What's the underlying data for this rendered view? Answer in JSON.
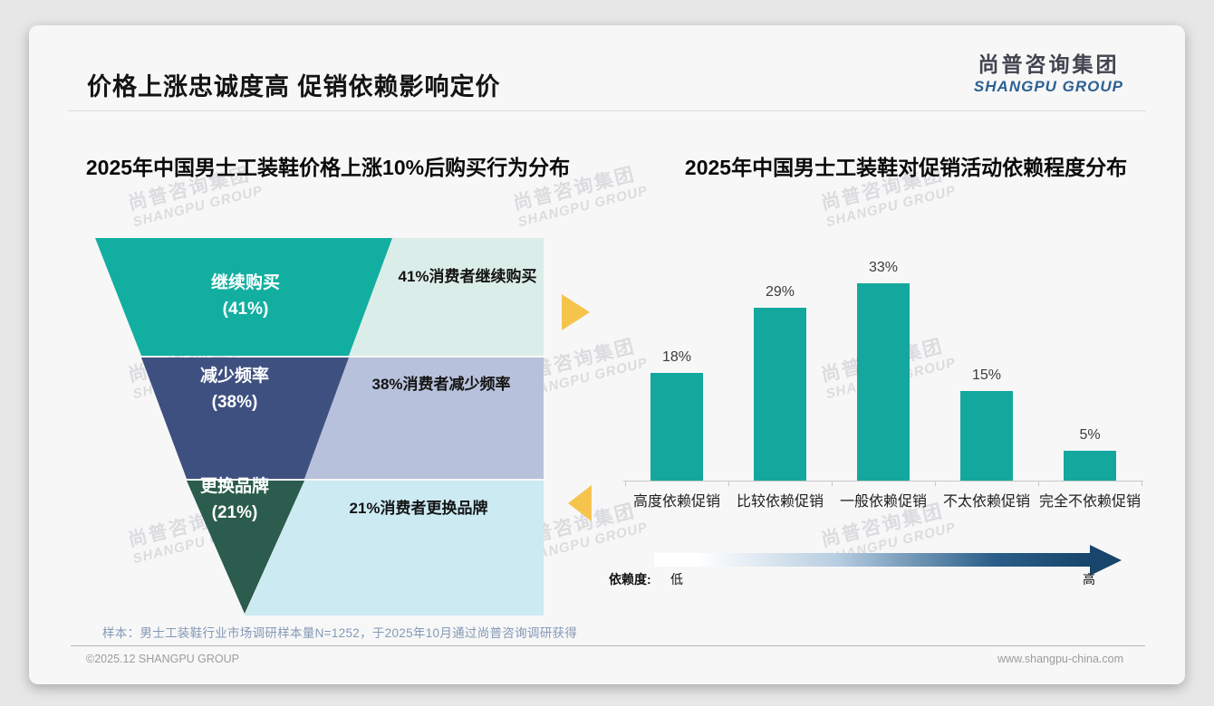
{
  "slide": {
    "title": "价格上涨忠诚度高 促销依赖影响定价",
    "logo_cn": "尚普咨询集团",
    "logo_en": "SHANGPU GROUP",
    "note": "样本：男士工装鞋行业市场调研样本量N=1252，于2025年10月通过尚普咨询调研获得",
    "copyright": "©2025.12 SHANGPU GROUP",
    "website": "www.shangpu-china.com",
    "watermark_cn": "尚普咨询集团",
    "watermark_en": "SHANGPU GROUP",
    "accent_arrow_color": "#F6C44D"
  },
  "chart_data": [
    {
      "type": "funnel",
      "title": "2025年中国男士工装鞋价格上涨10%后购买行为分布",
      "categories": [
        "继续购买",
        "减少频率",
        "更换品牌"
      ],
      "values": [
        41,
        38,
        21
      ],
      "unit": "%",
      "levels": [
        {
          "label": "继续购买",
          "pct_label": "(41%)",
          "value": 41,
          "annotation": "41%消费者继续购买",
          "segment_color": "#12AFA1",
          "panel_color": "#DBEDE8"
        },
        {
          "label": "减少频率",
          "pct_label": "(38%)",
          "value": 38,
          "annotation": "38%消费者减少频率",
          "segment_color": "#3E5080",
          "panel_color": "#B7C1DB"
        },
        {
          "label": "更换品牌",
          "pct_label": "(21%)",
          "value": 21,
          "annotation": "21%消费者更换品牌",
          "segment_color": "#2B5C4D",
          "panel_color": "#CBEAF2"
        }
      ]
    },
    {
      "type": "bar",
      "title": "2025年中国男士工装鞋对促销活动依赖程度分布",
      "categories": [
        "高度依赖促销",
        "比较依赖促销",
        "一般依赖促销",
        "不太依赖促销",
        "完全不依赖促销"
      ],
      "values": [
        18,
        29,
        33,
        15,
        5
      ],
      "value_labels": [
        "18%",
        "29%",
        "33%",
        "15%",
        "5%"
      ],
      "bar_color": "#14A79E",
      "ylim": [
        0,
        35
      ],
      "grid": false,
      "legend": {
        "label": "依赖度:",
        "low": "低",
        "high": "高",
        "gradient": [
          "#FFFFFF",
          "#B7CDE1",
          "#2A5E89",
          "#17456B"
        ]
      }
    }
  ]
}
